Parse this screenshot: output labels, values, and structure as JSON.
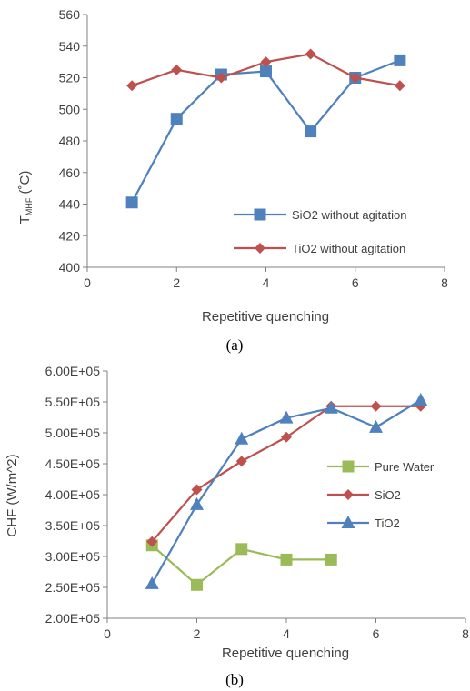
{
  "chart_data": [
    {
      "type": "line",
      "caption": "(a)",
      "xlabel": "Repetitive quenching",
      "ylabel_main": "T",
      "ylabel_sub": "MHF",
      "ylabel_unit": " (˚C)",
      "xlim": [
        0,
        8
      ],
      "ylim": [
        400,
        560
      ],
      "xticks": [
        0,
        2,
        4,
        6,
        8
      ],
      "yticks": [
        400,
        420,
        440,
        460,
        480,
        500,
        520,
        540,
        560
      ],
      "legend_position": "bottom-right",
      "series": [
        {
          "name": "SiO2 without agitation",
          "color": "#4f81bd",
          "marker": "square",
          "x": [
            1,
            2,
            3,
            4,
            5,
            6,
            7
          ],
          "y": [
            441,
            494,
            522,
            524,
            486,
            520,
            531
          ]
        },
        {
          "name": "TiO2 without agitation",
          "color": "#c0504d",
          "marker": "diamond",
          "x": [
            1,
            2,
            3,
            4,
            5,
            6,
            7
          ],
          "y": [
            515,
            525,
            520,
            530,
            535,
            520,
            515
          ]
        }
      ]
    },
    {
      "type": "line",
      "caption": "(b)",
      "xlabel": "Repetitive quenching",
      "ylabel": "CHF (W/m^2)",
      "xlim": [
        0,
        8
      ],
      "ylim": [
        200000,
        600000
      ],
      "xticks": [
        0,
        2,
        4,
        6,
        8
      ],
      "yticks": [
        200000,
        250000,
        300000,
        350000,
        400000,
        450000,
        500000,
        550000,
        600000
      ],
      "ytick_labels": [
        "2.00E+05",
        "2.50E+05",
        "3.00E+05",
        "3.50E+05",
        "4.00E+05",
        "4.50E+05",
        "5.00E+05",
        "5.50E+05",
        "6.00E+05"
      ],
      "legend_position": "right",
      "series": [
        {
          "name": "Pure Water",
          "color": "#9bbb59",
          "marker": "square",
          "x": [
            1,
            2,
            3,
            4,
            5
          ],
          "y": [
            318000,
            254000,
            312000,
            295000,
            295000
          ]
        },
        {
          "name": "SiO2",
          "color": "#c0504d",
          "marker": "diamond",
          "x": [
            1,
            2,
            3,
            4,
            5,
            6,
            7
          ],
          "y": [
            324000,
            408000,
            454000,
            493000,
            543000,
            543000,
            543000
          ]
        },
        {
          "name": "TiO2",
          "color": "#4f81bd",
          "marker": "triangle",
          "x": [
            1,
            2,
            3,
            4,
            5,
            6,
            7
          ],
          "y": [
            256000,
            384000,
            490000,
            524000,
            540000,
            509000,
            553000
          ]
        }
      ]
    }
  ]
}
